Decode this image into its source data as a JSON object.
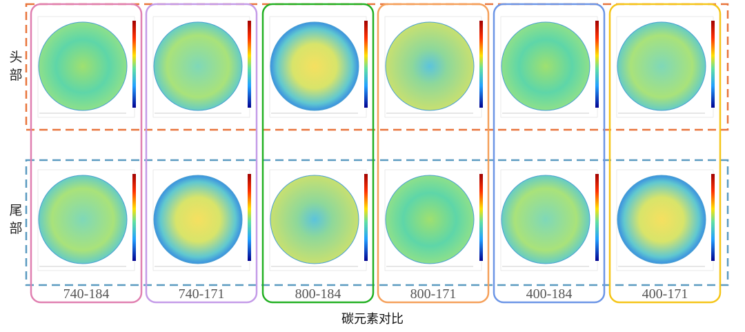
{
  "row_labels": [
    "头部",
    "尾部"
  ],
  "columns": [
    {
      "label": "740-184",
      "color": "#e07fb0"
    },
    {
      "label": "740-171",
      "color": "#c49be8"
    },
    {
      "label": "800-184",
      "color": "#22b022"
    },
    {
      "label": "800-171",
      "color": "#f5a05a"
    },
    {
      "label": "400-184",
      "color": "#6b95e6"
    },
    {
      "label": "400-171",
      "color": "#f5c518"
    }
  ],
  "caption": "碳元素对比"
}
